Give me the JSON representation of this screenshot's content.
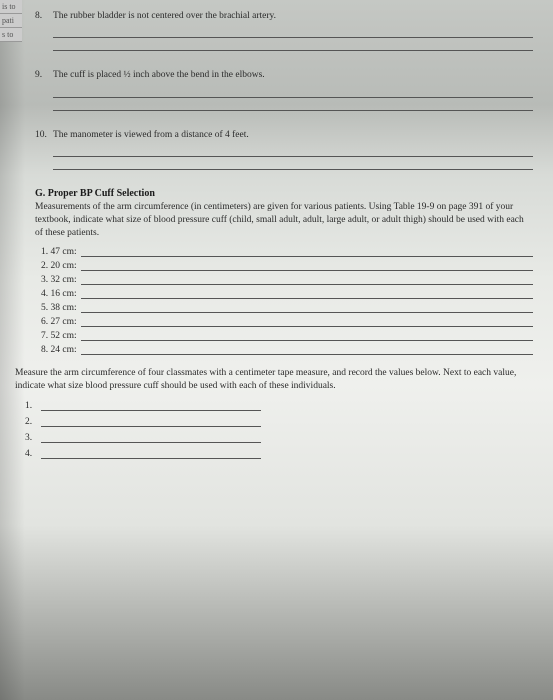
{
  "leftTabs": [
    "is to",
    "pati",
    "s to"
  ],
  "questions": [
    {
      "number": "8.",
      "text": "The rubber bladder is not centered over the brachial artery."
    },
    {
      "number": "9.",
      "text": "The cuff is placed ½ inch above the bend in the elbows."
    },
    {
      "number": "10.",
      "text": "The manometer is viewed from a distance of 4 feet."
    }
  ],
  "sectionG": {
    "title": "G. Proper BP Cuff Selection",
    "intro": "Measurements of the arm circumference (in centimeters) are given for various patients. Using Table 19-9 on page 391 of your textbook, indicate what size of blood pressure cuff (child, small adult, adult, large adult, or adult thigh) should be used with each of these patients.",
    "measurements": [
      "1. 47 cm:",
      "2. 20 cm:",
      "3. 32 cm:",
      "4. 16 cm:",
      "5. 38 cm:",
      "6. 27 cm:",
      "7. 52 cm:",
      "8. 24 cm:"
    ]
  },
  "classmates": {
    "intro": "Measure the arm circumference of four classmates with a centimeter tape measure, and record the values below. Next to each value, indicate what size blood pressure cuff should be used with each of these individuals.",
    "items": [
      "1.",
      "2.",
      "3.",
      "4."
    ]
  }
}
